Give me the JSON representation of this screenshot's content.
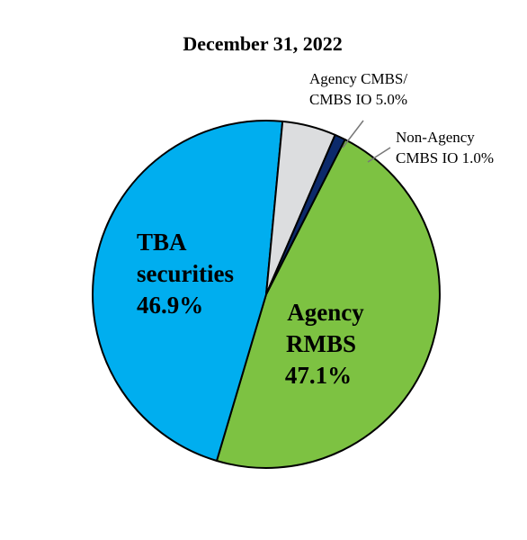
{
  "chart_data": {
    "type": "pie",
    "title": "December 31, 2022",
    "slices": [
      {
        "name": "Agency RMBS",
        "value": 47.1,
        "label": "47.1%",
        "color": "#7dc242"
      },
      {
        "name": "TBA securities",
        "value": 46.9,
        "label": "46.9%",
        "color": "#00aeef"
      },
      {
        "name": "Agency CMBS/ CMBS IO",
        "value": 5.0,
        "label": "5.0%",
        "color": "#dcdddf"
      },
      {
        "name": "Non-Agency CMBS IO",
        "value": 1.0,
        "label": "1.0%",
        "color": "#0c2a6b"
      }
    ],
    "labels": {
      "agency_rmbs": [
        "Agency",
        "RMBS",
        "47.1%"
      ],
      "tba": [
        "TBA",
        "securities",
        "46.9%"
      ],
      "agency_cmbs": [
        "Agency CMBS/",
        "CMBS IO 5.0%"
      ],
      "non_agency": [
        "Non-Agency",
        "CMBS IO 1.0%"
      ]
    }
  }
}
